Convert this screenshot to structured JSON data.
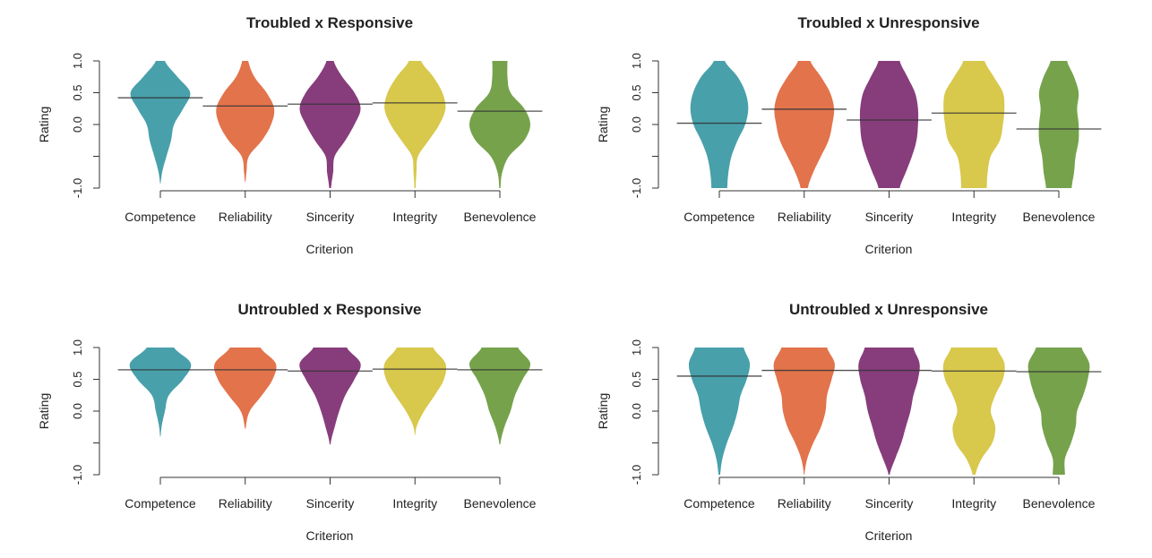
{
  "chart_data": [
    {
      "type": "violin",
      "title": "Troubled x Responsive",
      "xlabel": "Criterion",
      "ylabel": "Rating",
      "ylim": [
        -1,
        1
      ],
      "yticks": [
        "-1.0",
        "0.0",
        "0.5",
        "1.0"
      ],
      "categories": [
        "Competence",
        "Reliability",
        "Sincerity",
        "Integrity",
        "Benevolence"
      ],
      "density_grid": [
        -1,
        -0.75,
        -0.5,
        -0.25,
        0,
        0.25,
        0.5,
        0.75,
        1
      ],
      "densities": [
        [
          0,
          0.06,
          0.2,
          0.35,
          0.45,
          0.75,
          0.98,
          0.56,
          0.15
        ],
        [
          0,
          0.04,
          0.12,
          0.55,
          0.85,
          0.95,
          0.7,
          0.3,
          0.1
        ],
        [
          0.03,
          0.1,
          0.15,
          0.5,
          0.8,
          1.0,
          0.8,
          0.4,
          0.12
        ],
        [
          0.02,
          0.05,
          0.1,
          0.45,
          0.8,
          1.0,
          0.9,
          0.6,
          0.2
        ],
        [
          0.02,
          0.08,
          0.3,
          0.8,
          1.0,
          0.8,
          0.35,
          0.25,
          0.25
        ]
      ],
      "means": [
        0.42,
        0.29,
        0.32,
        0.34,
        0.21
      ]
    },
    {
      "type": "violin",
      "title": "Troubled x Unresponsive",
      "xlabel": "Criterion",
      "ylabel": "Rating",
      "ylim": [
        -1,
        1
      ],
      "yticks": [
        "-1.0",
        "0.0",
        "0.5",
        "1.0"
      ],
      "categories": [
        "Competence",
        "Reliability",
        "Sincerity",
        "Integrity",
        "Benevolence"
      ],
      "density_grid": [
        -1,
        -0.75,
        -0.5,
        -0.25,
        0,
        0.25,
        0.5,
        0.75,
        1
      ],
      "densities": [
        [
          0.26,
          0.3,
          0.4,
          0.6,
          0.85,
          0.95,
          0.86,
          0.6,
          0.18
        ],
        [
          0.12,
          0.3,
          0.55,
          0.8,
          0.92,
          0.98,
          0.85,
          0.55,
          0.2
        ],
        [
          0.35,
          0.55,
          0.75,
          0.9,
          0.95,
          0.95,
          0.85,
          0.6,
          0.35
        ],
        [
          0.42,
          0.45,
          0.55,
          0.85,
          0.95,
          1.0,
          0.95,
          0.65,
          0.35
        ],
        [
          0.42,
          0.5,
          0.55,
          0.65,
          0.65,
          0.6,
          0.65,
          0.5,
          0.27
        ]
      ],
      "means": [
        0.02,
        0.24,
        0.07,
        0.18,
        -0.07
      ]
    },
    {
      "type": "violin",
      "title": "Untroubled x Responsive",
      "xlabel": "Criterion",
      "ylabel": "Rating",
      "ylim": [
        -1,
        1
      ],
      "yticks": [
        "-1.0",
        "0.0",
        "0.5",
        "1.0"
      ],
      "categories": [
        "Competence",
        "Reliability",
        "Sincerity",
        "Integrity",
        "Benevolence"
      ],
      "density_grid": [
        -1,
        -0.75,
        -0.5,
        -0.25,
        0,
        0.25,
        0.5,
        0.75,
        1
      ],
      "densities": [
        [
          0,
          0,
          0,
          0.04,
          0.15,
          0.28,
          0.75,
          1.0,
          0.45
        ],
        [
          0,
          0,
          0,
          0.02,
          0.15,
          0.55,
          0.9,
          1.0,
          0.5
        ],
        [
          0,
          0,
          0.02,
          0.15,
          0.3,
          0.5,
          0.8,
          1.0,
          0.55
        ],
        [
          0,
          0,
          0,
          0.05,
          0.3,
          0.65,
          0.95,
          1.0,
          0.6
        ],
        [
          0,
          0,
          0.02,
          0.15,
          0.35,
          0.5,
          0.75,
          1.0,
          0.6
        ]
      ],
      "means": [
        0.65,
        0.65,
        0.63,
        0.66,
        0.65
      ]
    },
    {
      "type": "violin",
      "title": "Untroubled x Unresponsive",
      "xlabel": "Criterion",
      "ylabel": "Rating",
      "ylim": [
        -1,
        1
      ],
      "yticks": [
        "-1.0",
        "0.0",
        "0.5",
        "1.0"
      ],
      "categories": [
        "Competence",
        "Reliability",
        "Sincerity",
        "Integrity",
        "Benevolence"
      ],
      "density_grid": [
        -1,
        -0.75,
        -0.5,
        -0.25,
        0,
        0.25,
        0.5,
        0.75,
        1
      ],
      "densities": [
        [
          0.03,
          0.1,
          0.25,
          0.45,
          0.6,
          0.7,
          0.9,
          1.0,
          0.8
        ],
        [
          0.01,
          0.1,
          0.3,
          0.55,
          0.7,
          0.75,
          0.9,
          1.0,
          0.75
        ],
        [
          0.02,
          0.2,
          0.4,
          0.55,
          0.7,
          0.8,
          0.95,
          1.0,
          0.8
        ],
        [
          0.05,
          0.25,
          0.6,
          0.7,
          0.55,
          0.7,
          0.95,
          1.0,
          0.75
        ],
        [
          0.2,
          0.2,
          0.4,
          0.55,
          0.6,
          0.8,
          0.95,
          1.0,
          0.75
        ]
      ],
      "means": [
        0.55,
        0.64,
        0.64,
        0.63,
        0.62
      ]
    }
  ],
  "colors": [
    "#48a0ab",
    "#e2734b",
    "#873d7b",
    "#d8c84b",
    "#76a24c"
  ],
  "mean_line_color": "#333333"
}
